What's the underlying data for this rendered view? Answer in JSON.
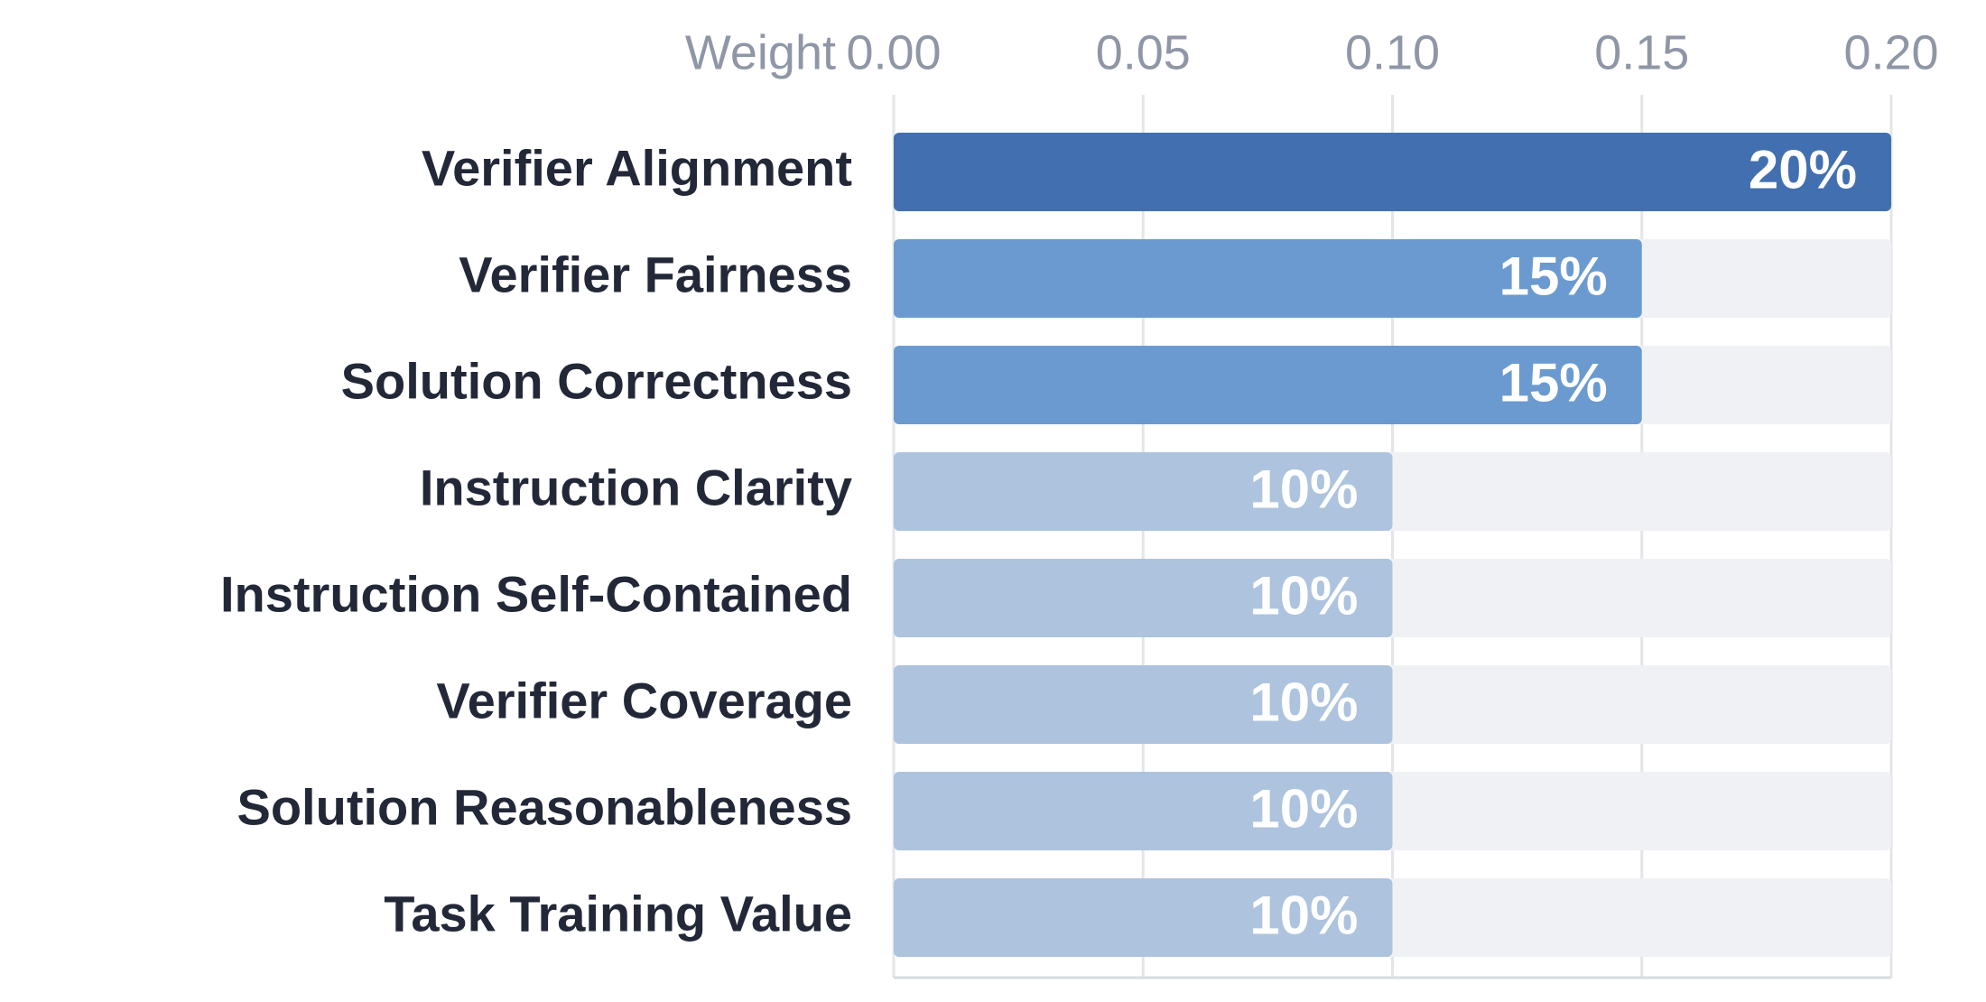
{
  "chart_data": {
    "type": "bar",
    "orientation": "horizontal",
    "xlabel": "Weight",
    "categories": [
      "Verifier Alignment",
      "Verifier Fairness",
      "Solution Correctness",
      "Instruction Clarity",
      "Instruction Self-Contained",
      "Verifier Coverage",
      "Solution Reasonableness",
      "Task Training Value"
    ],
    "values": [
      0.2,
      0.15,
      0.15,
      0.1,
      0.1,
      0.1,
      0.1,
      0.1
    ],
    "value_labels": [
      "20%",
      "15%",
      "15%",
      "10%",
      "10%",
      "10%",
      "10%",
      "10%"
    ],
    "colors": [
      "#426fb0",
      "#6a9ad0",
      "#6a9ad0",
      "#adc3de",
      "#adc3de",
      "#adc3de",
      "#adc3de",
      "#adc3de"
    ],
    "track_color": "#f0f1f4",
    "xlim": [
      0,
      0.2
    ],
    "xticks": [
      {
        "value": 0,
        "label": "0.00"
      },
      {
        "value": 0.05,
        "label": "0.05"
      },
      {
        "value": 0.1,
        "label": "0.10"
      },
      {
        "value": 0.15,
        "label": "0.15"
      },
      {
        "value": 0.2,
        "label": "0.20"
      }
    ],
    "grid": true
  }
}
